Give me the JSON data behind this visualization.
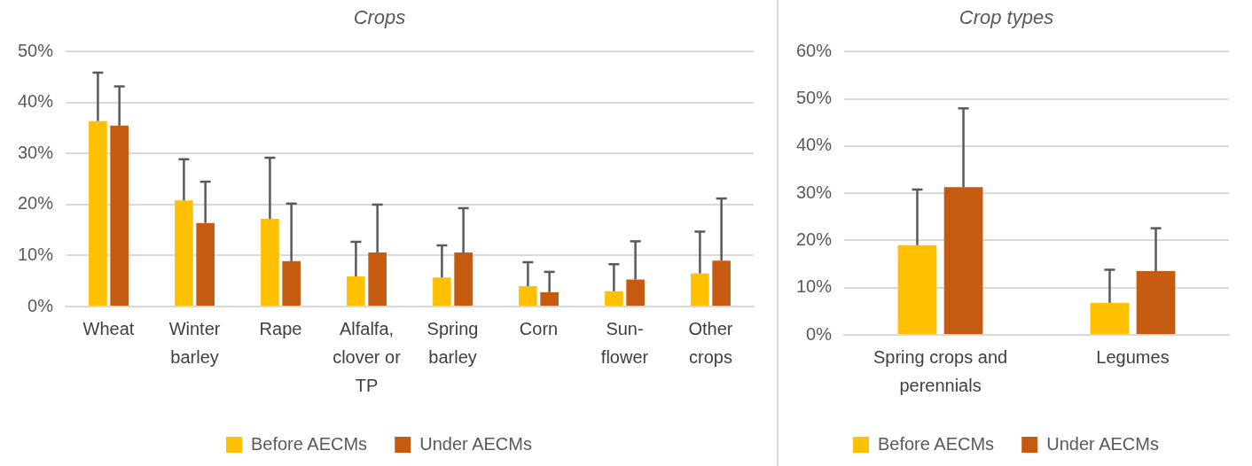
{
  "chart_data": [
    {
      "type": "bar",
      "title": "Crops",
      "categories": [
        "Wheat",
        "Winter barley",
        "Rape",
        "Alfalfa, clover or TP",
        "Spring barley",
        "Corn",
        "Sun-flower",
        "Other crops"
      ],
      "series": [
        {
          "name": "Before AECMs",
          "color": "#ffc000",
          "values": [
            36.4,
            20.8,
            17.2,
            5.9,
            5.7,
            4.0,
            3.0,
            6.5
          ],
          "errors": [
            [
              36.4,
              45.9
            ],
            [
              20.8,
              28.9
            ],
            [
              17.2,
              29.2
            ],
            [
              5.9,
              12.7
            ],
            [
              5.7,
              12.0
            ],
            [
              4.0,
              8.7
            ],
            [
              3.0,
              8.3
            ],
            [
              6.5,
              14.7
            ]
          ]
        },
        {
          "name": "Under AECMs",
          "color": "#c55a11",
          "values": [
            35.5,
            16.4,
            8.9,
            10.6,
            10.6,
            2.8,
            5.3,
            9.0
          ],
          "errors": [
            [
              35.5,
              43.2
            ],
            [
              16.4,
              24.5
            ],
            [
              8.9,
              20.2
            ],
            [
              10.6,
              20.0
            ],
            [
              10.6,
              19.3
            ],
            [
              2.8,
              6.8
            ],
            [
              5.3,
              12.8
            ],
            [
              9.0,
              21.2
            ]
          ]
        }
      ],
      "ylim": [
        0,
        50
      ],
      "yticks": [
        {
          "value": 0,
          "label": "0%"
        },
        {
          "value": 10,
          "label": "10%"
        },
        {
          "value": 20,
          "label": "20%"
        },
        {
          "value": 30,
          "label": "30%"
        },
        {
          "value": 40,
          "label": "40%"
        },
        {
          "value": 50,
          "label": "50%"
        }
      ],
      "grid": "y",
      "legend": "bottom"
    },
    {
      "type": "bar",
      "title": "Crop types",
      "categories": [
        "Spring crops and perennials",
        "Legumes"
      ],
      "series": [
        {
          "name": "Before AECMs",
          "color": "#ffc000",
          "values": [
            19.0,
            6.8
          ],
          "errors": [
            [
              19.0,
              30.8
            ],
            [
              6.8,
              13.8
            ]
          ]
        },
        {
          "name": "Under AECMs",
          "color": "#c55a11",
          "values": [
            31.3,
            13.5
          ],
          "errors": [
            [
              31.3,
              48.0
            ],
            [
              13.5,
              22.6
            ]
          ]
        }
      ],
      "ylim": [
        0,
        60
      ],
      "yticks": [
        {
          "value": 0,
          "label": "0%"
        },
        {
          "value": 10,
          "label": "10%"
        },
        {
          "value": 20,
          "label": "20%"
        },
        {
          "value": 30,
          "label": "30%"
        },
        {
          "value": 40,
          "label": "40%"
        },
        {
          "value": 50,
          "label": "50%"
        },
        {
          "value": 60,
          "label": "60%"
        }
      ],
      "grid": "y",
      "legend": "bottom"
    }
  ]
}
